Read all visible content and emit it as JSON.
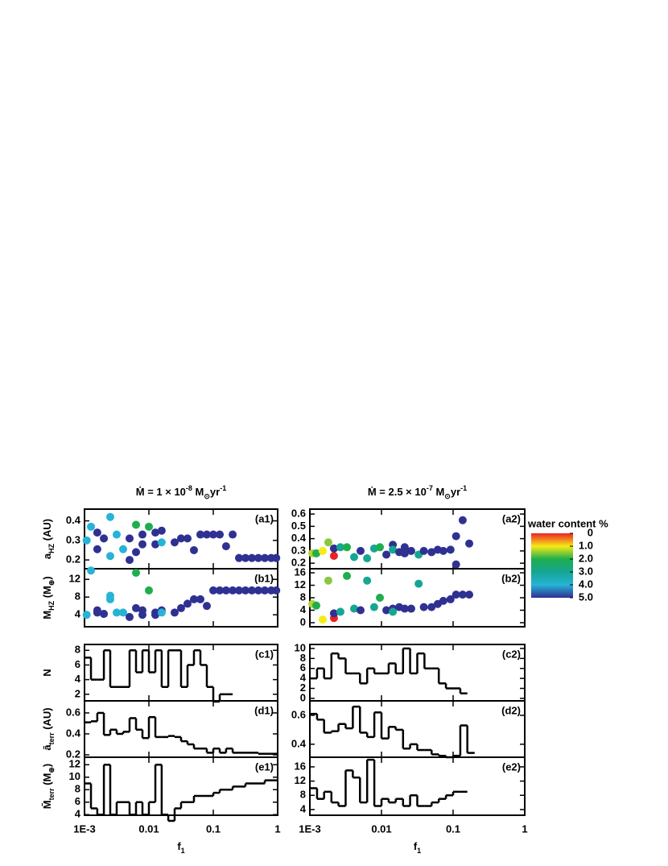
{
  "chart_data": [
    {
      "type": "scatter",
      "label": "(a1)",
      "title": [
        "Ṁ = 1 × 10",
        "-8",
        " M",
        "⊙",
        "yr",
        "-1"
      ],
      "ylabel": [
        "a",
        "HZ",
        " (AU)"
      ],
      "xscale": "log",
      "xlim": [
        0.001,
        1
      ],
      "xticks": [
        {
          "value": 0.001,
          "label": "1E-3"
        },
        0.01,
        0.1,
        1
      ],
      "ylim": [
        0.155,
        0.46
      ],
      "yticks": [
        0.2,
        0.3,
        0.4
      ],
      "series": [
        {
          "x": [
            0.00108,
            0.00126,
            0.00158,
            0.00158,
            0.002,
            0.00251,
            0.00251,
            0.00316,
            0.00398,
            0.00501,
            0.00501,
            0.00631,
            0.00631,
            0.00794,
            0.00794,
            0.01,
            0.0126,
            0.0126,
            0.0158,
            0.0158,
            0.0251,
            0.0316,
            0.0398,
            0.0501,
            0.0631,
            0.0794,
            0.1,
            0.126,
            0.158,
            0.2,
            0.251,
            0.316,
            0.398,
            0.501,
            0.631,
            0.794,
            0.95
          ],
          "values": [
            0.3,
            0.37,
            0.34,
            0.255,
            0.31,
            0.42,
            0.22,
            0.33,
            0.255,
            0.31,
            0.2,
            0.38,
            0.24,
            0.33,
            0.28,
            0.37,
            0.34,
            0.28,
            0.35,
            0.29,
            0.29,
            0.31,
            0.31,
            0.25,
            0.33,
            0.33,
            0.33,
            0.33,
            0.27,
            0.33,
            0.21,
            0.21,
            0.21,
            0.21,
            0.21,
            0.21,
            0.21
          ],
          "colors": [
            "#27b3d6",
            "#27b3d6",
            "#2e3192",
            "#2e3192",
            "#2e3192",
            "#27b3d6",
            "#27b3d6",
            "#27b3d6",
            "#27b3d6",
            "#2e3192",
            "#2e3192",
            "#1fae4e",
            "#2e3192",
            "#2e3192",
            "#2e3192",
            "#1fae4e",
            "#2e3192",
            "#2e3192",
            "#2e3192",
            "#27b3d6",
            "#2e3192",
            "#2e3192",
            "#2e3192",
            "#2e3192",
            "#2e3192",
            "#2e3192",
            "#2e3192",
            "#2e3192",
            "#2e3192",
            "#2e3192",
            "#2e3192",
            "#2e3192",
            "#2e3192",
            "#2e3192",
            "#2e3192",
            "#2e3192",
            "#2e3192"
          ]
        }
      ]
    },
    {
      "type": "scatter",
      "label": "(b1)",
      "ylabel": [
        "M",
        "HZ",
        " (M",
        "⊕",
        ")"
      ],
      "xscale": "log",
      "xlim": [
        0.001,
        1
      ],
      "xticks": [
        {
          "value": 0.001,
          "label": "1E-3"
        },
        0.01,
        0.1,
        1
      ],
      "ylim": [
        1.3,
        14.4
      ],
      "yticks": [
        4,
        8,
        12
      ],
      "series": [
        {
          "x": [
            0.00108,
            0.00126,
            0.00158,
            0.00158,
            0.002,
            0.00251,
            0.00251,
            0.00316,
            0.00398,
            0.00501,
            0.00631,
            0.00631,
            0.00794,
            0.00794,
            0.01,
            0.0126,
            0.0126,
            0.0158,
            0.0158,
            0.0251,
            0.0316,
            0.0398,
            0.0501,
            0.0631,
            0.0794,
            0.1,
            0.126,
            0.158,
            0.2,
            0.251,
            0.316,
            0.398,
            0.501,
            0.631,
            0.794,
            0.95
          ],
          "values": [
            4,
            14,
            4.5,
            5,
            4.2,
            8.3,
            7.5,
            4.5,
            4.5,
            3.5,
            13.5,
            5.5,
            4,
            5,
            9.5,
            4.5,
            4,
            5,
            4.5,
            4.5,
            5.5,
            6.5,
            7.5,
            7.5,
            6,
            9.5,
            9.5,
            9.5,
            9.5,
            9.5,
            9.5,
            9.5,
            9.5,
            9.5,
            9.5,
            9.5
          ],
          "colors": [
            "#27b3d6",
            "#27b3d6",
            "#2e3192",
            "#2e3192",
            "#2e3192",
            "#27b3d6",
            "#27b3d6",
            "#27b3d6",
            "#27b3d6",
            "#2e3192",
            "#1fae4e",
            "#2e3192",
            "#2e3192",
            "#2e3192",
            "#1fae4e",
            "#2e3192",
            "#2e3192",
            "#2e3192",
            "#27b3d6",
            "#2e3192",
            "#2e3192",
            "#2e3192",
            "#2e3192",
            "#2e3192",
            "#2e3192",
            "#2e3192",
            "#2e3192",
            "#2e3192",
            "#2e3192",
            "#2e3192",
            "#2e3192",
            "#2e3192",
            "#2e3192",
            "#2e3192",
            "#2e3192",
            "#2e3192"
          ]
        }
      ]
    },
    {
      "type": "histogram",
      "label": "(c1)",
      "ylabel": [
        "N"
      ],
      "xscale": "log",
      "xlim": [
        0.001,
        1
      ],
      "xticks": [
        {
          "value": 0.001,
          "label": "1E-3"
        },
        0.01,
        0.1,
        1
      ],
      "ylim": [
        1.1,
        8.8
      ],
      "yticks": [
        2,
        4,
        6,
        8
      ],
      "bins": [
        0.001,
        0.00126,
        0.00158,
        0.002,
        0.00251,
        0.00316,
        0.00398,
        0.00501,
        0.00631,
        0.00794,
        0.01,
        0.0126,
        0.0158,
        0.02,
        0.0251,
        0.0316,
        0.0398,
        0.0501,
        0.0631,
        0.0794,
        0.1,
        0.126,
        0.158,
        0.2
      ],
      "values": [
        7,
        4,
        4,
        8,
        3,
        3,
        3,
        8,
        5,
        8,
        5,
        8,
        3,
        8,
        8,
        3,
        6,
        8,
        6,
        3,
        1,
        2,
        2
      ]
    },
    {
      "type": "histogram",
      "label": "(d1)",
      "ylabel": [
        "ā",
        "terr",
        " (AU)"
      ],
      "xscale": "log",
      "xlim": [
        0.001,
        1
      ],
      "xticks": [
        {
          "value": 0.001,
          "label": "1E-3"
        },
        0.01,
        0.1,
        1
      ],
      "ylim": [
        0.177,
        0.715
      ],
      "yticks": [
        0.2,
        0.4,
        0.6
      ],
      "bins": [
        0.001,
        0.00126,
        0.00158,
        0.002,
        0.00251,
        0.00316,
        0.00398,
        0.00501,
        0.00631,
        0.00794,
        0.01,
        0.0126,
        0.0158,
        0.02,
        0.0251,
        0.0316,
        0.0398,
        0.0501,
        0.0631,
        0.0794,
        0.1,
        0.126,
        0.158,
        0.2,
        0.251,
        0.316,
        0.398,
        0.501,
        0.631,
        0.794,
        1
      ],
      "values": [
        0.51,
        0.52,
        0.6,
        0.39,
        0.44,
        0.4,
        0.42,
        0.55,
        0.44,
        0.36,
        0.56,
        0.37,
        0.37,
        0.38,
        0.37,
        0.33,
        0.3,
        0.26,
        0.26,
        0.22,
        0.26,
        0.22,
        0.26,
        0.22,
        0.22,
        0.22,
        0.22,
        0.21,
        0.21,
        0.21
      ]
    },
    {
      "type": "histogram",
      "label": "(e1)",
      "ylabel": [
        "M̄",
        "terr",
        " (M",
        "⊕",
        ")"
      ],
      "xlabel": [
        "f",
        "1"
      ],
      "xscale": "log",
      "xlim": [
        0.001,
        1
      ],
      "xticks": [
        {
          "value": 0.001,
          "label": "1E-3"
        },
        0.01,
        0.1,
        1
      ],
      "ylim": [
        3.9,
        13.2
      ],
      "yticks": [
        4,
        6,
        8,
        10,
        12
      ],
      "bins": [
        0.001,
        0.00126,
        0.00158,
        0.002,
        0.00251,
        0.00316,
        0.00398,
        0.00501,
        0.00631,
        0.00794,
        0.01,
        0.0126,
        0.0158,
        0.02,
        0.0251,
        0.0316,
        0.0398,
        0.0501,
        0.0631,
        0.0794,
        0.1,
        0.126,
        0.158,
        0.2,
        0.251,
        0.316,
        0.398,
        0.501,
        0.631,
        0.794,
        1
      ],
      "values": [
        9,
        5,
        4,
        12,
        4,
        6,
        6,
        4,
        6,
        4,
        6,
        12,
        4,
        3,
        5,
        6,
        6,
        7,
        7,
        7,
        7.5,
        8,
        8,
        8.5,
        8.5,
        9,
        9,
        9,
        9.5,
        9.5
      ]
    },
    {
      "type": "scatter",
      "label": "(a2)",
      "title": [
        "Ṁ = 2.5 × 10",
        "-7",
        " M",
        "⊙",
        "yr",
        "-1"
      ],
      "xscale": "log",
      "xlim": [
        0.001,
        1
      ],
      "xticks": [
        {
          "value": 0.001,
          "label": "1E-3"
        },
        0.01,
        0.1,
        1
      ],
      "ylim": [
        0.155,
        0.64
      ],
      "yticks": [
        0.2,
        0.3,
        0.4,
        0.5,
        0.6
      ],
      "series": [
        {
          "x": [
            0.00108,
            0.00123,
            0.00151,
            0.00181,
            0.00217,
            0.00217,
            0.00267,
            0.00329,
            0.00415,
            0.0051,
            0.0063,
            0.0079,
            0.0095,
            0.0117,
            0.0144,
            0.0144,
            0.0177,
            0.0211,
            0.0211,
            0.026,
            0.033,
            0.039,
            0.05,
            0.061,
            0.073,
            0.092,
            0.11,
            0.11,
            0.136,
            0.168
          ],
          "values": [
            0.28,
            0.28,
            0.3,
            0.37,
            0.26,
            0.32,
            0.33,
            0.33,
            0.25,
            0.3,
            0.24,
            0.32,
            0.33,
            0.27,
            0.35,
            0.31,
            0.29,
            0.33,
            0.28,
            0.3,
            0.27,
            0.3,
            0.29,
            0.31,
            0.3,
            0.31,
            0.42,
            0.19,
            0.55,
            0.36
          ],
          "colors": [
            "#b5d334",
            "#1fae4e",
            "#f6eb16",
            "#8cc63f",
            "#ec2227",
            "#2e3192",
            "#16a693",
            "#1fae4e",
            "#16a693",
            "#2e3192",
            "#16a693",
            "#16a693",
            "#1fae4e",
            "#2e3192",
            "#2e3192",
            "#16a693",
            "#2e3192",
            "#2e3192",
            "#2e3192",
            "#2e3192",
            "#16a693",
            "#2e3192",
            "#2e3192",
            "#2e3192",
            "#2e3192",
            "#2e3192",
            "#2e3192",
            "#2e3192",
            "#2e3192",
            "#2e3192"
          ]
        }
      ]
    },
    {
      "type": "scatter",
      "label": "(b2)",
      "xscale": "log",
      "xlim": [
        0.001,
        1
      ],
      "xticks": [
        {
          "value": 0.001,
          "label": "1E-3"
        },
        0.01,
        0.1,
        1
      ],
      "ylim": [
        -1.3,
        17.3
      ],
      "yticks": [
        0,
        4,
        8,
        12,
        16
      ],
      "series": [
        {
          "x": [
            0.00108,
            0.00123,
            0.00151,
            0.00181,
            0.00217,
            0.00217,
            0.00267,
            0.00329,
            0.00415,
            0.0051,
            0.0063,
            0.0079,
            0.0095,
            0.0117,
            0.0144,
            0.0144,
            0.0177,
            0.0211,
            0.026,
            0.033,
            0.039,
            0.05,
            0.061,
            0.073,
            0.092,
            0.11,
            0.136,
            0.168
          ],
          "values": [
            6,
            5.5,
            1,
            13.5,
            1.5,
            3,
            3.5,
            15,
            4.5,
            4,
            13.5,
            5,
            8,
            4,
            4.5,
            3.5,
            5,
            4.5,
            4.5,
            12.5,
            5,
            5,
            6,
            7,
            7.5,
            9,
            9,
            9
          ],
          "colors": [
            "#b5d334",
            "#1fae4e",
            "#f6eb16",
            "#8cc63f",
            "#ec2227",
            "#2e3192",
            "#16a693",
            "#1fae4e",
            "#16a693",
            "#2e3192",
            "#16a693",
            "#16a693",
            "#1fae4e",
            "#2e3192",
            "#2e3192",
            "#16a693",
            "#2e3192",
            "#2e3192",
            "#2e3192",
            "#16a693",
            "#2e3192",
            "#2e3192",
            "#2e3192",
            "#2e3192",
            "#2e3192",
            "#2e3192",
            "#2e3192",
            "#2e3192"
          ]
        }
      ]
    },
    {
      "type": "histogram",
      "label": "(c2)",
      "xscale": "log",
      "xlim": [
        0.001,
        1
      ],
      "xticks": [
        {
          "value": 0.001,
          "label": "1E-3"
        },
        0.01,
        0.1,
        1
      ],
      "ylim": [
        -0.5,
        10.8
      ],
      "yticks": [
        0,
        2,
        4,
        6,
        8,
        10
      ],
      "bins": [
        0.001,
        0.00126,
        0.00158,
        0.002,
        0.00251,
        0.00316,
        0.00398,
        0.00501,
        0.00631,
        0.00794,
        0.01,
        0.0126,
        0.0158,
        0.02,
        0.0251,
        0.0316,
        0.0398,
        0.0501,
        0.0631,
        0.0794,
        0.1,
        0.126,
        0.158
      ],
      "values": [
        4,
        6,
        4,
        9,
        8,
        5,
        5,
        3,
        6,
        5,
        5,
        7,
        5,
        10,
        5,
        9,
        6,
        6,
        3,
        2,
        2,
        1
      ]
    },
    {
      "type": "histogram",
      "label": "(d2)",
      "xscale": "log",
      "xlim": [
        0.001,
        1
      ],
      "xticks": [
        {
          "value": 0.001,
          "label": "1E-3"
        },
        0.01,
        0.1,
        1
      ],
      "ylim": [
        0.31,
        0.7
      ],
      "yticks": [
        0.4,
        0.6
      ],
      "bins": [
        0.001,
        0.00126,
        0.00158,
        0.002,
        0.00251,
        0.00316,
        0.00398,
        0.00501,
        0.00631,
        0.00794,
        0.01,
        0.0126,
        0.0158,
        0.02,
        0.0251,
        0.0316,
        0.0398,
        0.0501,
        0.0631,
        0.0794,
        0.1,
        0.126,
        0.158,
        0.2
      ],
      "values": [
        0.61,
        0.57,
        0.48,
        0.49,
        0.54,
        0.51,
        0.66,
        0.48,
        0.45,
        0.62,
        0.44,
        0.52,
        0.5,
        0.37,
        0.4,
        0.36,
        0.36,
        0.33,
        0.32,
        0.31,
        0.32,
        0.53,
        0.34
      ]
    },
    {
      "type": "histogram",
      "label": "(e2)",
      "xlabel": [
        "f",
        "1"
      ],
      "xscale": "log",
      "xlim": [
        0.001,
        1
      ],
      "xticks": [
        {
          "value": 0.001,
          "label": "1E-3"
        },
        0.01,
        0.1,
        1
      ],
      "ylim": [
        2.4,
        18.7
      ],
      "yticks": [
        4,
        8,
        12,
        16
      ],
      "bins": [
        0.001,
        0.00126,
        0.00158,
        0.002,
        0.00251,
        0.00316,
        0.00398,
        0.00501,
        0.00631,
        0.00794,
        0.01,
        0.0126,
        0.0158,
        0.02,
        0.0251,
        0.0316,
        0.0398,
        0.0501,
        0.0631,
        0.0794,
        0.1,
        0.126,
        0.158
      ],
      "values": [
        10,
        7,
        9,
        6,
        5,
        15,
        13,
        6,
        18,
        5,
        7,
        6,
        7,
        5,
        8,
        5,
        5,
        6,
        7,
        8,
        9,
        9
      ]
    },
    {
      "type": "colorbar",
      "title": "water content %",
      "lim": [
        0,
        5
      ],
      "ticks": [
        0,
        {
          "value": 1,
          "label": "1.0"
        },
        {
          "value": 2,
          "label": "2.0"
        },
        {
          "value": 3,
          "label": "3.0"
        },
        {
          "value": 4,
          "label": "4.0"
        },
        {
          "value": 5,
          "label": "5.0"
        }
      ],
      "colors": [
        "#ec2227",
        "#f6eb16",
        "#1fae4e",
        "#16a693",
        "#27b3d6",
        "#2e3192"
      ]
    }
  ]
}
